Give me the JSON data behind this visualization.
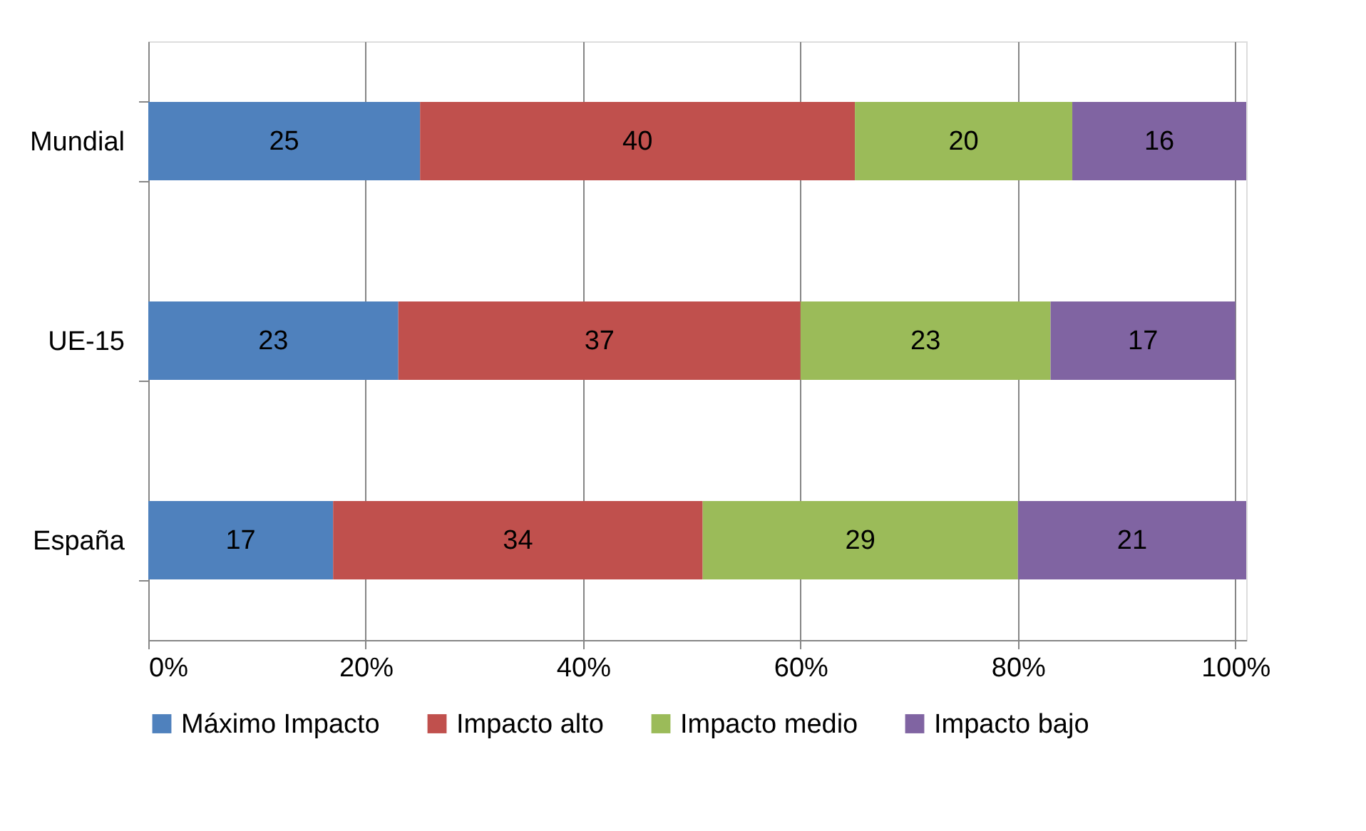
{
  "chart_data": {
    "type": "bar",
    "orientation": "horizontal",
    "stacked": true,
    "categories": [
      "Mundial",
      "UE-15",
      "España"
    ],
    "series": [
      {
        "name": "Máximo Impacto",
        "color": "#4f81bd",
        "values": [
          25,
          23,
          17
        ]
      },
      {
        "name": "Impacto alto",
        "color": "#c0504d",
        "values": [
          40,
          37,
          34
        ]
      },
      {
        "name": "Impacto medio",
        "color": "#9bbb59",
        "values": [
          20,
          23,
          29
        ]
      },
      {
        "name": "Impacto bajo",
        "color": "#8064a2",
        "values": [
          16,
          17,
          21
        ]
      }
    ],
    "xlim": [
      0,
      101
    ],
    "xticks": [
      {
        "value": 0,
        "label": "0%"
      },
      {
        "value": 20,
        "label": "20%"
      },
      {
        "value": 40,
        "label": "40%"
      },
      {
        "value": 60,
        "label": "60%"
      },
      {
        "value": 80,
        "label": "80%"
      },
      {
        "value": 100,
        "label": "100%"
      }
    ],
    "data_labels": true,
    "grid": "x",
    "legend": "bottom"
  }
}
